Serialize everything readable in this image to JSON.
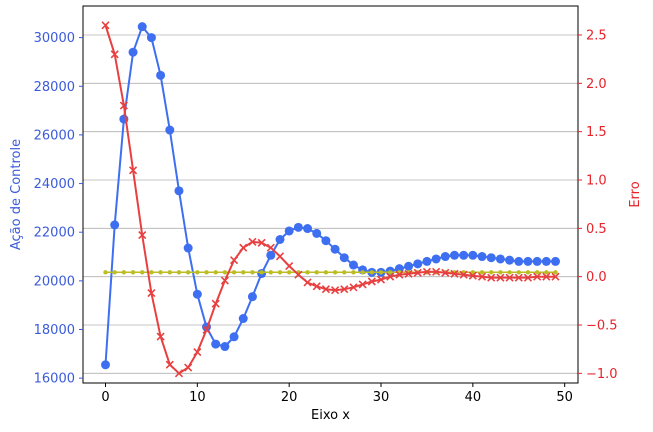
{
  "chart_data": {
    "type": "line",
    "title": "",
    "xlabel": "Eixo x",
    "ylabel_left": "Ação de Controle",
    "ylabel_right": "Erro",
    "xlim": [
      -2.45,
      51.45
    ],
    "ylim_left": [
      15800,
      31300
    ],
    "ylim_right": [
      -1.1,
      2.8
    ],
    "x_ticks": [
      0,
      10,
      20,
      30,
      40,
      50
    ],
    "y_left_ticks": [
      16000,
      18000,
      20000,
      22000,
      24000,
      26000,
      28000,
      30000
    ],
    "y_right_ticks": [
      -1.0,
      -0.5,
      0.0,
      0.5,
      1.0,
      1.5,
      2.0,
      2.5
    ],
    "y_right_tick_labels": [
      "−1.0",
      "−0.5",
      "0.0",
      "0.5",
      "1.0",
      "1.5",
      "2.0",
      "2.5"
    ],
    "grid": "right-axis horizontal lines",
    "colors": {
      "control": "#3d6ff0",
      "control_axis": "#3b5bdb",
      "reference": "#bcbd22",
      "error": "#e84040",
      "error_axis": "#e8232a",
      "grid": "#b0b0b0"
    },
    "x": [
      0,
      1,
      2,
      3,
      4,
      5,
      6,
      7,
      8,
      9,
      10,
      11,
      12,
      13,
      14,
      15,
      16,
      17,
      18,
      19,
      20,
      21,
      22,
      23,
      24,
      25,
      26,
      27,
      28,
      29,
      30,
      31,
      32,
      33,
      34,
      35,
      36,
      37,
      38,
      39,
      40,
      41,
      42,
      43,
      44,
      45,
      46,
      47,
      48,
      49
    ],
    "series": [
      {
        "axis": "left",
        "marker": "circle",
        "values": [
          16550,
          22300,
          26650,
          29400,
          30450,
          30000,
          28450,
          26200,
          23700,
          21350,
          19450,
          18100,
          17400,
          17300,
          17700,
          18450,
          19350,
          20300,
          21050,
          21700,
          22050,
          22200,
          22150,
          21950,
          21650,
          21300,
          20950,
          20650,
          20450,
          20350,
          20350,
          20400,
          20500,
          20600,
          20700,
          20800,
          20900,
          21000,
          21050,
          21050,
          21050,
          21000,
          20950,
          20900,
          20850,
          20800,
          20800,
          20800,
          20800,
          20800
        ]
      },
      {
        "axis": "left",
        "marker": "dot",
        "values": [
          20350,
          20350,
          20350,
          20350,
          20350,
          20350,
          20350,
          20350,
          20350,
          20350,
          20350,
          20350,
          20350,
          20350,
          20350,
          20350,
          20350,
          20350,
          20350,
          20350,
          20350,
          20350,
          20350,
          20350,
          20350,
          20350,
          20350,
          20350,
          20350,
          20350,
          20350,
          20350,
          20350,
          20350,
          20350,
          20350,
          20350,
          20350,
          20350,
          20350,
          20350,
          20350,
          20350,
          20350,
          20350,
          20350,
          20350,
          20350,
          20350,
          20350
        ]
      },
      {
        "axis": "right",
        "marker": "x",
        "values": [
          2.6,
          2.3,
          1.77,
          1.1,
          0.43,
          -0.17,
          -0.62,
          -0.91,
          -1.0,
          -0.94,
          -0.78,
          -0.55,
          -0.28,
          -0.04,
          0.17,
          0.3,
          0.36,
          0.35,
          0.3,
          0.21,
          0.11,
          0.02,
          -0.06,
          -0.1,
          -0.13,
          -0.14,
          -0.13,
          -0.11,
          -0.08,
          -0.05,
          -0.03,
          0.0,
          0.02,
          0.03,
          0.04,
          0.05,
          0.05,
          0.04,
          0.03,
          0.02,
          0.01,
          0.0,
          -0.01,
          -0.01,
          -0.01,
          -0.01,
          -0.01,
          0.0,
          0.0,
          0.0
        ]
      }
    ]
  }
}
